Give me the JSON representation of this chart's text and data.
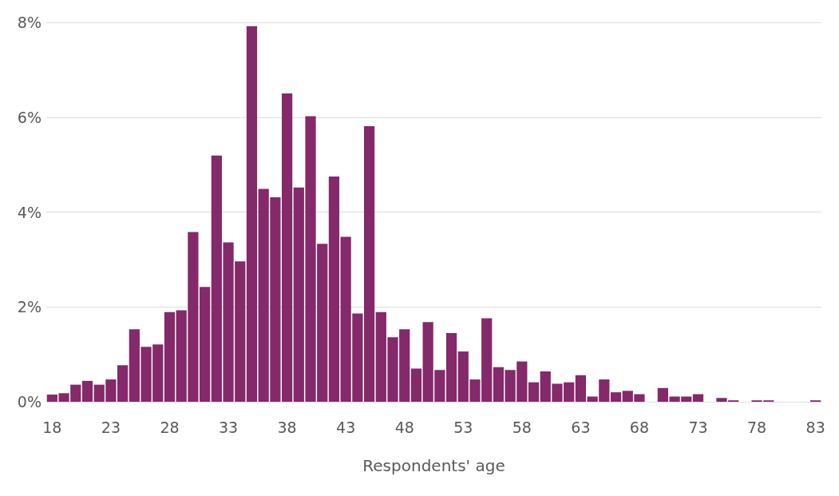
{
  "chart_data": {
    "type": "bar",
    "xlabel": "Respondents' age",
    "categories": [
      "18",
      null,
      null,
      null,
      null,
      "23",
      null,
      null,
      null,
      null,
      "28",
      null,
      null,
      null,
      null,
      "33",
      null,
      null,
      null,
      null,
      "38",
      null,
      null,
      null,
      null,
      "43",
      null,
      null,
      null,
      null,
      "48",
      null,
      null,
      null,
      null,
      "53",
      null,
      null,
      null,
      null,
      "58",
      null,
      null,
      null,
      null,
      "63",
      null,
      null,
      null,
      null,
      "68",
      null,
      null,
      null,
      null,
      "73",
      null,
      null,
      null,
      null,
      "78",
      null,
      null,
      null,
      null,
      "83"
    ],
    "values": [
      0.15,
      0.18,
      0.36,
      0.44,
      0.36,
      0.47,
      0.77,
      1.53,
      1.16,
      1.21,
      1.89,
      1.93,
      3.58,
      2.42,
      5.19,
      3.36,
      2.96,
      7.92,
      4.49,
      4.31,
      6.5,
      4.52,
      6.02,
      3.33,
      4.75,
      3.48,
      1.86,
      5.81,
      1.89,
      1.36,
      1.53,
      0.7,
      1.68,
      0.67,
      1.45,
      1.06,
      0.47,
      1.76,
      0.73,
      0.67,
      0.85,
      0.41,
      0.64,
      0.38,
      0.41,
      0.56,
      0.11,
      0.47,
      0.2,
      0.23,
      0.16,
      0,
      0.29,
      0.11,
      0.11,
      0.16,
      0,
      0.08,
      0.03,
      0,
      0.03,
      0.03,
      0,
      0,
      0,
      0.03
    ],
    "color": "#84296a",
    "ylim": [
      0,
      8
    ],
    "yticks": [
      {
        "value": 0,
        "label": "0%"
      },
      {
        "value": 2,
        "label": "2%"
      },
      {
        "value": 4,
        "label": "4%"
      },
      {
        "value": 6,
        "label": "6%"
      },
      {
        "value": 8,
        "label": "8%"
      }
    ],
    "grid": "y"
  }
}
